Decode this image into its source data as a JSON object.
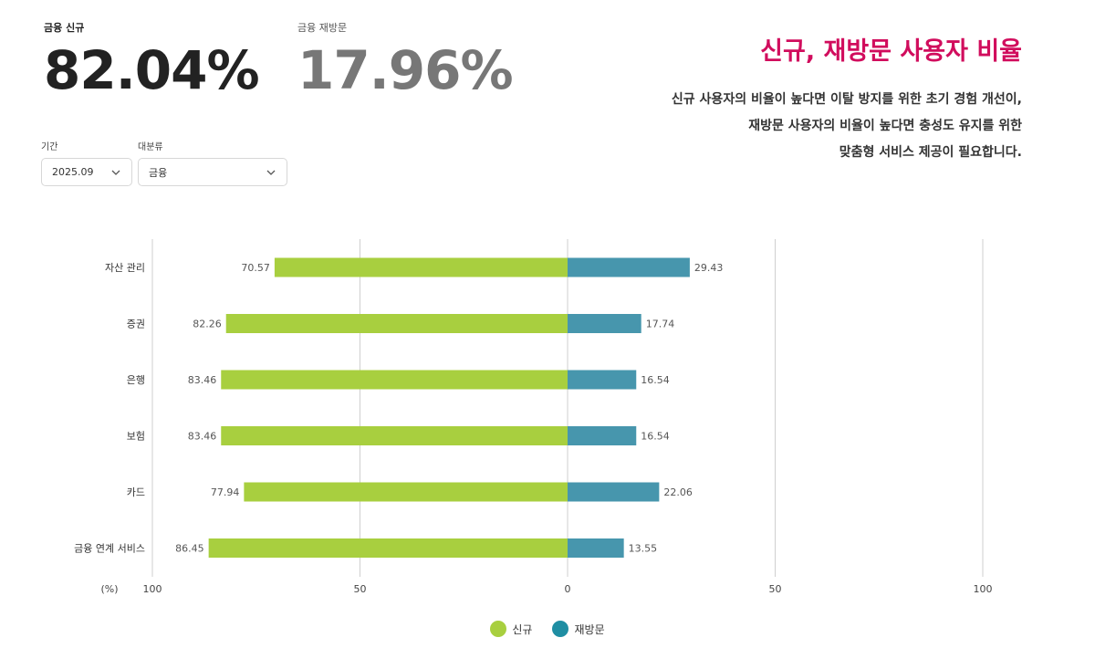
{
  "kpis": {
    "new": {
      "label": "금융 신규",
      "value": "82.04%"
    },
    "return": {
      "label": "금융 재방문",
      "value": "17.96%"
    }
  },
  "filters": {
    "period": {
      "label": "기간",
      "value": "2025.09"
    },
    "category": {
      "label": "대분류",
      "value": "금융"
    }
  },
  "header": {
    "title": "신규, 재방문 사용자 비율",
    "desc_lines": [
      "신규 사용자의 비율이 높다면 이탈 방지를 위한 초기 경험 개선이,",
      "재방문 사용자의 비율이 높다면 충성도 유지를 위한",
      "맞춤형 서비스 제공이 필요합니다."
    ]
  },
  "colors": {
    "new": "#a8cf3f",
    "return": "#4796ad",
    "legend_return": "#1f8ea3",
    "title": "#d10d5d"
  },
  "chart_data": {
    "type": "bar",
    "orientation": "horizontal-diverging",
    "categories": [
      "자산 관리",
      "증권",
      "은행",
      "보험",
      "카드",
      "금융 연계 서비스"
    ],
    "series": [
      {
        "name": "신규",
        "values": [
          70.57,
          82.26,
          83.46,
          83.46,
          77.94,
          86.45
        ]
      },
      {
        "name": "재방문",
        "values": [
          29.43,
          17.74,
          16.54,
          16.54,
          22.06,
          13.55
        ]
      }
    ],
    "xlim": [
      -100,
      100
    ],
    "x_ticks": [
      "100",
      "50",
      "0",
      "50",
      "100"
    ],
    "x_unit": "(%)",
    "grid": true,
    "legend_position": "bottom"
  }
}
